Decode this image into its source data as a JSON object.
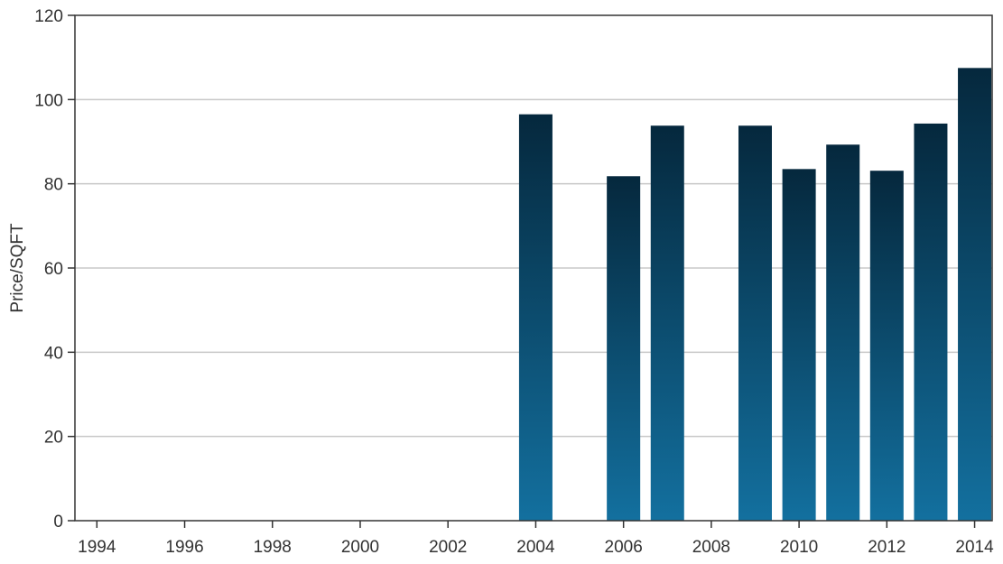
{
  "chart_data": {
    "type": "bar",
    "title": "",
    "xlabel": "",
    "ylabel": "Price/SQFT",
    "x": [
      1994,
      1995,
      1996,
      1997,
      1998,
      1999,
      2000,
      2001,
      2002,
      2003,
      2004,
      2005,
      2006,
      2007,
      2008,
      2009,
      2010,
      2011,
      2012,
      2013,
      2014
    ],
    "values": [
      0,
      0,
      0,
      0,
      0,
      0,
      0,
      0,
      0,
      0,
      96.5,
      0,
      81.8,
      93.8,
      0,
      93.8,
      83.5,
      89.3,
      83.1,
      94.3,
      107.5
    ],
    "xticks": [
      "1994",
      "1996",
      "1998",
      "2000",
      "2002",
      "2004",
      "2006",
      "2008",
      "2010",
      "2012",
      "2014"
    ],
    "yticks": [
      "0",
      "20",
      "40",
      "60",
      "80",
      "100",
      "120"
    ],
    "ylim": [
      0,
      120
    ],
    "xlim": [
      1993.5,
      2014.4
    ],
    "grid": "horizontal",
    "legend": "none",
    "colors": {
      "bar_top": "#05283d",
      "bar_bottom": "#13709f",
      "grid": "#c8c8c8",
      "axis": "#333333"
    }
  }
}
